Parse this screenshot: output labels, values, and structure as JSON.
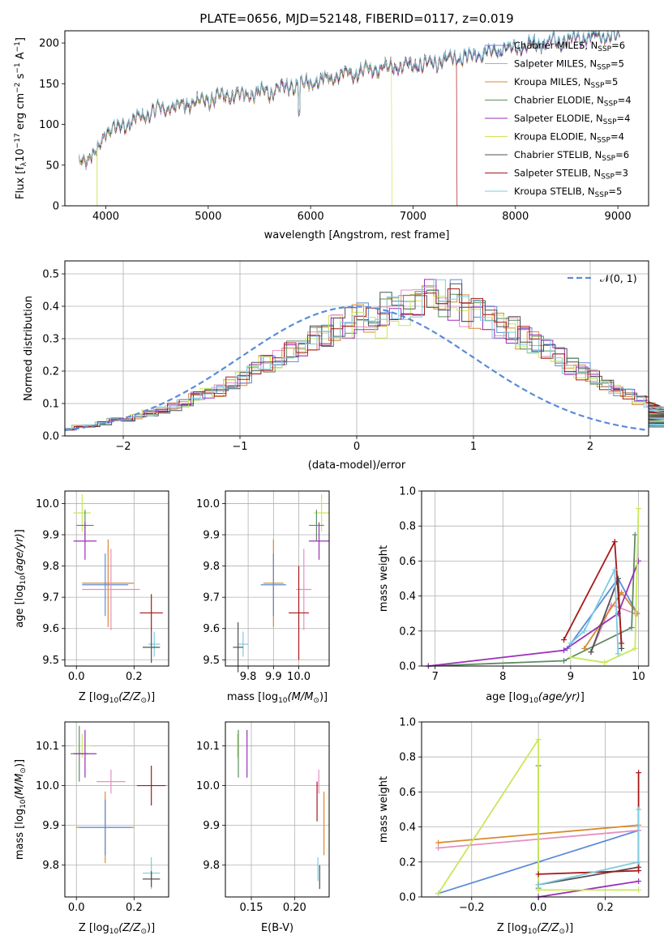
{
  "figure": {
    "title": "PLATE=0656, MJD=52148, FIBERID=0117, z=0.019"
  },
  "chart_data": [
    {
      "id": "spectrum",
      "type": "line",
      "xlabel": "wavelength [Angstrom, rest frame]",
      "ylabel": "Flux [f",
      "xlim": [
        3600,
        9300
      ],
      "ylim": [
        0,
        215
      ],
      "xticks": [
        "4000",
        "5000",
        "6000",
        "7000",
        "8000",
        "9000"
      ],
      "yticks": [
        "0",
        "50",
        "100",
        "150",
        "200"
      ],
      "grid": false,
      "legend_position": "top-right",
      "legend_labels": [
        "Chabrier MILES, N",
        "Salpeter MILES, N",
        "Kroupa MILES, N",
        "Chabrier ELODIE, N",
        "Salpeter ELODIE, N",
        "Kroupa ELODIE, N",
        "Chabrier STELIB, N",
        "Salpeter STELIB, N",
        "Kroupa STELIB, N"
      ],
      "legend_nssp": [
        "=6",
        "=5",
        "=5",
        "=4",
        "=4",
        "=4",
        "=6",
        "=3",
        "=5"
      ],
      "series": [
        {
          "name": "Chabrier MILES",
          "color": "#5b8bd9"
        },
        {
          "name": "Salpeter MILES",
          "color": "#e58fc0"
        },
        {
          "name": "Kroupa MILES",
          "color": "#d98a2e"
        },
        {
          "name": "Chabrier ELODIE",
          "color": "#5e8c62"
        },
        {
          "name": "Salpeter ELODIE",
          "color": "#9b2fb8"
        },
        {
          "name": "Kroupa ELODIE",
          "color": "#c8e85a"
        },
        {
          "name": "Chabrier STELIB",
          "color": "#505050"
        },
        {
          "name": "Salpeter STELIB",
          "color": "#a81818"
        },
        {
          "name": "Kroupa STELIB",
          "color": "#7ecbe0"
        }
      ],
      "continuum_anchor_points": {
        "x": [
          3740,
          3900,
          4000,
          4200,
          4500,
          4900,
          5200,
          5600,
          5900,
          6300,
          6700,
          7000,
          7300,
          7600,
          8000,
          8500,
          9000
        ],
        "y": [
          55,
          62,
          92,
          100,
          118,
          128,
          135,
          140,
          150,
          160,
          170,
          172,
          178,
          185,
          195,
          205,
          210
        ]
      },
      "dropouts": [
        {
          "name": "Kroupa ELODIE",
          "x_from": 6790
        },
        {
          "name": "Salpeter STELIB",
          "x_from": 7430
        }
      ]
    },
    {
      "id": "residuals",
      "type": "bar",
      "xlabel": "(data-model)/error",
      "ylabel": "Normed distribution",
      "xlim": [
        -2.5,
        2.5
      ],
      "ylim": [
        0,
        0.54
      ],
      "xticks": [
        "−2",
        "−1",
        "0",
        "1",
        "2"
      ],
      "yticks": [
        "0.0",
        "0.1",
        "0.2",
        "0.3",
        "0.4",
        "0.5"
      ],
      "grid": true,
      "legend_position": "top-right",
      "legend_labels": [
        "𝒩(0, 1)"
      ],
      "bin_width": 0.1,
      "normal_curve": {
        "mean": 0,
        "sigma": 1,
        "color": "#5b8bd9"
      },
      "base_hist": [
        0.02,
        0.03,
        0.03,
        0.04,
        0.05,
        0.05,
        0.06,
        0.07,
        0.08,
        0.09,
        0.1,
        0.12,
        0.13,
        0.14,
        0.16,
        0.18,
        0.2,
        0.22,
        0.24,
        0.26,
        0.28,
        0.3,
        0.32,
        0.33,
        0.35,
        0.36,
        0.37,
        0.38,
        0.39,
        0.4,
        0.41,
        0.42,
        0.41,
        0.4,
        0.39,
        0.38,
        0.36,
        0.35,
        0.33,
        0.31,
        0.29,
        0.27,
        0.25,
        0.22,
        0.2,
        0.18,
        0.16,
        0.14,
        0.13,
        0.11,
        0.1,
        0.09,
        0.08,
        0.07,
        0.06,
        0.05,
        0.05,
        0.04,
        0.03,
        0.03
      ],
      "series_colors": [
        "#5b8bd9",
        "#e58fc0",
        "#d98a2e",
        "#5e8c62",
        "#9b2fb8",
        "#c8e85a",
        "#505050",
        "#a81818",
        "#7ecbe0"
      ]
    },
    {
      "id": "age-vs-metallicity",
      "type": "scatter",
      "xlabel": "Z [log",
      "ylabel": "age  [log",
      "xlim": [
        -0.04,
        0.32
      ],
      "ylim": [
        9.48,
        10.04
      ],
      "xticks": [
        "0.0",
        "0.2"
      ],
      "yticks": [
        "9.5",
        "9.6",
        "9.7",
        "9.8",
        "9.9",
        "10.0"
      ],
      "grid": true,
      "points": [
        {
          "x": 0.02,
          "y": 9.97,
          "xerr": 0.03,
          "yerr": 0.06,
          "color": "#c8e85a"
        },
        {
          "x": 0.03,
          "y": 9.93,
          "xerr": 0.03,
          "yerr": 0.05,
          "color": "#5e8c62"
        },
        {
          "x": 0.03,
          "y": 9.88,
          "xerr": 0.04,
          "yerr": 0.06,
          "color": "#9b2fb8"
        },
        {
          "x": 0.11,
          "y": 9.745,
          "xerr": 0.09,
          "yerr": 0.14,
          "color": "#d98a2e"
        },
        {
          "x": 0.1,
          "y": 9.74,
          "xerr": 0.08,
          "yerr": 0.1,
          "color": "#5b8bd9"
        },
        {
          "x": 0.12,
          "y": 9.725,
          "xerr": 0.1,
          "yerr": 0.13,
          "color": "#e58fc0"
        },
        {
          "x": 0.26,
          "y": 9.65,
          "xerr": 0.04,
          "yerr": 0.06,
          "color": "#a81818"
        },
        {
          "x": 0.27,
          "y": 9.55,
          "xerr": 0.02,
          "yerr": 0.04,
          "color": "#7ecbe0"
        },
        {
          "x": 0.26,
          "y": 9.54,
          "xerr": 0.03,
          "yerr": 0.05,
          "color": "#505050"
        }
      ]
    },
    {
      "id": "age-vs-mass",
      "type": "scatter",
      "xlabel": "mass [log",
      "ylabel": "",
      "xlim": [
        9.71,
        10.12
      ],
      "ylim": [
        9.48,
        10.04
      ],
      "xticks": [
        "9.8",
        "9.9",
        "10.0"
      ],
      "yticks": [
        "9.5",
        "9.6",
        "9.7",
        "9.8",
        "9.9",
        "10.0"
      ],
      "grid": true,
      "points": [
        {
          "x": 10.09,
          "y": 9.97,
          "xerr": 0.03,
          "yerr": 0.06,
          "color": "#c8e85a"
        },
        {
          "x": 10.07,
          "y": 9.93,
          "xerr": 0.03,
          "yerr": 0.05,
          "color": "#5e8c62"
        },
        {
          "x": 10.08,
          "y": 9.88,
          "xerr": 0.04,
          "yerr": 0.06,
          "color": "#9b2fb8"
        },
        {
          "x": 9.9,
          "y": 9.745,
          "xerr": 0.04,
          "yerr": 0.14,
          "color": "#d98a2e"
        },
        {
          "x": 9.9,
          "y": 9.74,
          "xerr": 0.05,
          "yerr": 0.1,
          "color": "#5b8bd9"
        },
        {
          "x": 10.02,
          "y": 9.725,
          "xerr": 0.03,
          "yerr": 0.13,
          "color": "#e58fc0"
        },
        {
          "x": 10.0,
          "y": 9.65,
          "xerr": 0.04,
          "yerr": 0.15,
          "color": "#a81818"
        },
        {
          "x": 9.78,
          "y": 9.55,
          "xerr": 0.02,
          "yerr": 0.04,
          "color": "#7ecbe0"
        },
        {
          "x": 9.76,
          "y": 9.54,
          "xerr": 0.02,
          "yerr": 0.08,
          "color": "#505050"
        }
      ]
    },
    {
      "id": "mass-weight-vs-age",
      "type": "line",
      "xlabel": "age  [log",
      "ylabel": "mass weight",
      "xlim": [
        6.8,
        10.15
      ],
      "ylim": [
        0,
        1
      ],
      "xticks": [
        "7",
        "8",
        "9",
        "10"
      ],
      "yticks": [
        "0.0",
        "0.2",
        "0.4",
        "0.6",
        "0.8",
        "1.0"
      ],
      "grid": true,
      "series": [
        {
          "name": "Chabrier MILES",
          "color": "#5b8bd9",
          "x": [
            8.95,
            9.7,
            9.98
          ],
          "y": [
            0.1,
            0.5,
            0.3
          ]
        },
        {
          "name": "Salpeter MILES",
          "color": "#e58fc0",
          "x": [
            9.3,
            9.6,
            9.95
          ],
          "y": [
            0.08,
            0.35,
            0.3
          ]
        },
        {
          "name": "Kroupa MILES",
          "color": "#d98a2e",
          "x": [
            9.2,
            9.75,
            9.98
          ],
          "y": [
            0.1,
            0.42,
            0.3
          ]
        },
        {
          "name": "Chabrier ELODIE",
          "color": "#5e8c62",
          "x": [
            6.9,
            8.9,
            9.9,
            9.95
          ],
          "y": [
            0.0,
            0.03,
            0.22,
            0.75
          ]
        },
        {
          "name": "Salpeter ELODIE",
          "color": "#9b2fb8",
          "x": [
            6.9,
            8.9,
            9.7,
            10.0
          ],
          "y": [
            0.0,
            0.09,
            0.3,
            0.6
          ]
        },
        {
          "name": "Kroupa ELODIE",
          "color": "#c8e85a",
          "x": [
            9.0,
            9.5,
            9.95,
            10.0
          ],
          "y": [
            0.05,
            0.02,
            0.1,
            0.9
          ]
        },
        {
          "name": "Chabrier STELIB",
          "color": "#505050",
          "x": [
            9.3,
            9.7,
            9.75
          ],
          "y": [
            0.08,
            0.5,
            0.1
          ]
        },
        {
          "name": "Salpeter STELIB",
          "color": "#a81818",
          "x": [
            8.9,
            9.65,
            9.75
          ],
          "y": [
            0.15,
            0.71,
            0.13
          ]
        },
        {
          "name": "Kroupa STELIB",
          "color": "#7ecbe0",
          "x": [
            9.0,
            9.2,
            9.65,
            9.7
          ],
          "y": [
            0.13,
            0.2,
            0.55,
            0.07
          ]
        }
      ]
    },
    {
      "id": "mass-vs-metallicity",
      "type": "scatter",
      "xlabel": "Z [log",
      "ylabel": "mass [log",
      "xlim": [
        -0.04,
        0.32
      ],
      "ylim": [
        9.72,
        10.16
      ],
      "xticks": [
        "0.0",
        "0.2"
      ],
      "yticks": [
        "9.8",
        "9.9",
        "10.0",
        "10.1"
      ],
      "grid": true,
      "points": [
        {
          "x": 0.02,
          "y": 10.1,
          "xerr": 0.03,
          "yerr": 0.03,
          "color": "#c8e85a"
        },
        {
          "x": 0.01,
          "y": 10.08,
          "xerr": 0.03,
          "yerr": 0.07,
          "color": "#5e8c62"
        },
        {
          "x": 0.03,
          "y": 10.08,
          "xerr": 0.04,
          "yerr": 0.06,
          "color": "#9b2fb8"
        },
        {
          "x": 0.12,
          "y": 10.01,
          "xerr": 0.05,
          "yerr": 0.03,
          "color": "#e58fc0"
        },
        {
          "x": 0.26,
          "y": 10.0,
          "xerr": 0.05,
          "yerr": 0.05,
          "color": "#a81818"
        },
        {
          "x": 0.1,
          "y": 9.895,
          "xerr": 0.1,
          "yerr": 0.09,
          "color": "#d98a2e"
        },
        {
          "x": 0.1,
          "y": 9.895,
          "xerr": 0.09,
          "yerr": 0.07,
          "color": "#5b8bd9"
        },
        {
          "x": 0.26,
          "y": 9.78,
          "xerr": 0.03,
          "yerr": 0.04,
          "color": "#7ecbe0"
        },
        {
          "x": 0.26,
          "y": 9.765,
          "xerr": 0.03,
          "yerr": 0.02,
          "color": "#505050"
        }
      ]
    },
    {
      "id": "mass-vs-extinction",
      "type": "scatter",
      "xlabel": "E(B-V)",
      "ylabel": "",
      "xlim": [
        0.12,
        0.24
      ],
      "ylim": [
        9.72,
        10.16
      ],
      "xticks": [
        "0.15",
        "0.20"
      ],
      "yticks": [
        "9.8",
        "9.9",
        "10.0",
        "10.1"
      ],
      "grid": true,
      "points": [
        {
          "x": 0.134,
          "y": 10.1,
          "xerr": 0,
          "yerr": 0.03,
          "color": "#c8e85a"
        },
        {
          "x": 0.135,
          "y": 10.08,
          "xerr": 0,
          "yerr": 0.06,
          "color": "#5e8c62"
        },
        {
          "x": 0.145,
          "y": 10.08,
          "xerr": 0,
          "yerr": 0.06,
          "color": "#9b2fb8"
        },
        {
          "x": 0.228,
          "y": 10.01,
          "xerr": 0,
          "yerr": 0.03,
          "color": "#e58fc0"
        },
        {
          "x": 0.226,
          "y": 9.96,
          "xerr": 0,
          "yerr": 0.05,
          "color": "#a81818"
        },
        {
          "x": 0.234,
          "y": 9.905,
          "xerr": 0,
          "yerr": 0.08,
          "color": "#d98a2e"
        },
        {
          "x": 0.227,
          "y": 9.79,
          "xerr": 0,
          "yerr": 0.03,
          "color": "#7ecbe0"
        },
        {
          "x": 0.229,
          "y": 9.77,
          "xerr": 0,
          "yerr": 0.03,
          "color": "#505050"
        }
      ]
    },
    {
      "id": "mass-weight-vs-metallicity",
      "type": "line",
      "xlabel": "Z [log",
      "ylabel": "mass weight",
      "xlim": [
        -0.35,
        0.33
      ],
      "ylim": [
        0,
        1
      ],
      "xticks": [
        "−0.2",
        "0.0",
        "0.2"
      ],
      "yticks": [
        "0.0",
        "0.2",
        "0.4",
        "0.6",
        "0.8",
        "1.0"
      ],
      "grid": true,
      "series": [
        {
          "name": "Chabrier MILES",
          "color": "#5b8bd9",
          "x": [
            -0.3,
            0.0,
            0.3
          ],
          "y": [
            0.02,
            0.2,
            0.38
          ]
        },
        {
          "name": "Salpeter MILES",
          "color": "#e58fc0",
          "x": [
            -0.3,
            0.3
          ],
          "y": [
            0.28,
            0.38
          ]
        },
        {
          "name": "Kroupa MILES",
          "color": "#d98a2e",
          "x": [
            -0.3,
            0.3
          ],
          "y": [
            0.31,
            0.41
          ]
        },
        {
          "name": "Chabrier ELODIE",
          "color": "#5e8c62",
          "x": [
            0.0,
            0.0
          ],
          "y": [
            0.05,
            0.75
          ]
        },
        {
          "name": "Salpeter ELODIE",
          "color": "#9b2fb8",
          "x": [
            0.0,
            0.3
          ],
          "y": [
            0.0,
            0.09
          ]
        },
        {
          "name": "Kroupa ELODIE",
          "color": "#c8e85a",
          "x": [
            -0.3,
            0.0,
            0.0,
            0.3
          ],
          "y": [
            0.02,
            0.9,
            0.04,
            0.04
          ]
        },
        {
          "name": "Chabrier STELIB",
          "color": "#505050",
          "x": [
            0.0,
            0.3
          ],
          "y": [
            0.07,
            0.17
          ]
        },
        {
          "name": "Salpeter STELIB",
          "color": "#a81818",
          "x": [
            0.0,
            0.3,
            0.3
          ],
          "y": [
            0.13,
            0.15,
            0.71
          ]
        },
        {
          "name": "Kroupa STELIB",
          "color": "#7ecbe0",
          "x": [
            0.0,
            0.3,
            0.3
          ],
          "y": [
            0.07,
            0.2,
            0.5
          ]
        }
      ]
    }
  ]
}
